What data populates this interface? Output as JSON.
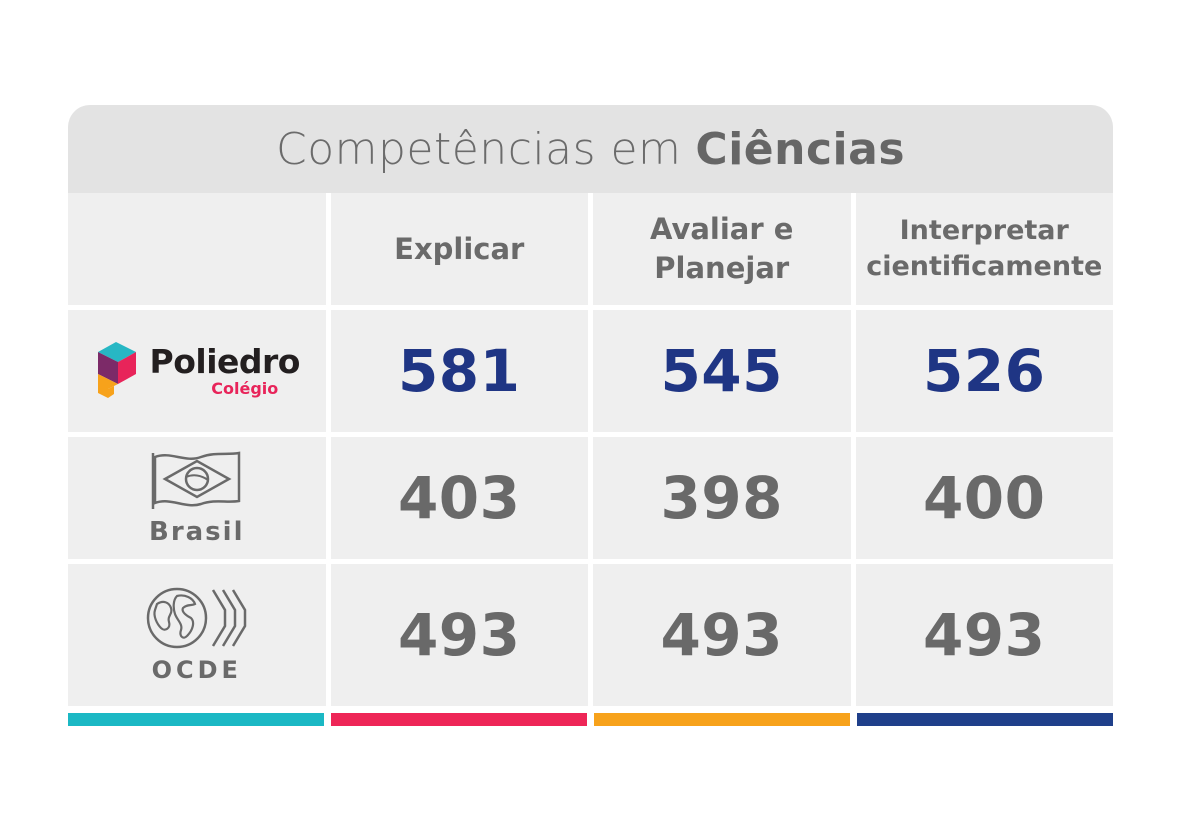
{
  "header": {
    "title_light": "Competências em",
    "title_bold": "Ciências"
  },
  "columns": [
    {
      "label_line1": "Explicar",
      "label_line2": ""
    },
    {
      "label_line1": "Avaliar e",
      "label_line2": "Planejar"
    },
    {
      "label_line1": "Interpretar",
      "label_line2": "cientificamente"
    }
  ],
  "rows": [
    {
      "name": "Poliedro",
      "sub": "Colégio",
      "icon": "poliedro-logo"
    },
    {
      "name": "Brasil",
      "icon": "brazil-flag-icon"
    },
    {
      "name": "OCDE",
      "icon": "oecd-globe-icon"
    }
  ],
  "chart_data": {
    "type": "table",
    "title": "Competências em Ciências",
    "categories": [
      "Explicar",
      "Avaliar e Planejar",
      "Interpretar cientificamente"
    ],
    "series": [
      {
        "name": "Poliedro Colégio",
        "values": [
          581,
          545,
          526
        ]
      },
      {
        "name": "Brasil",
        "values": [
          403,
          398,
          400
        ]
      },
      {
        "name": "OCDE",
        "values": [
          493,
          493,
          493
        ]
      }
    ]
  },
  "colors": {
    "highlight_values": "#1f3584",
    "bars": [
      "#1bb8c4",
      "#ee2657",
      "#f7a21b",
      "#1f3f8a"
    ]
  }
}
